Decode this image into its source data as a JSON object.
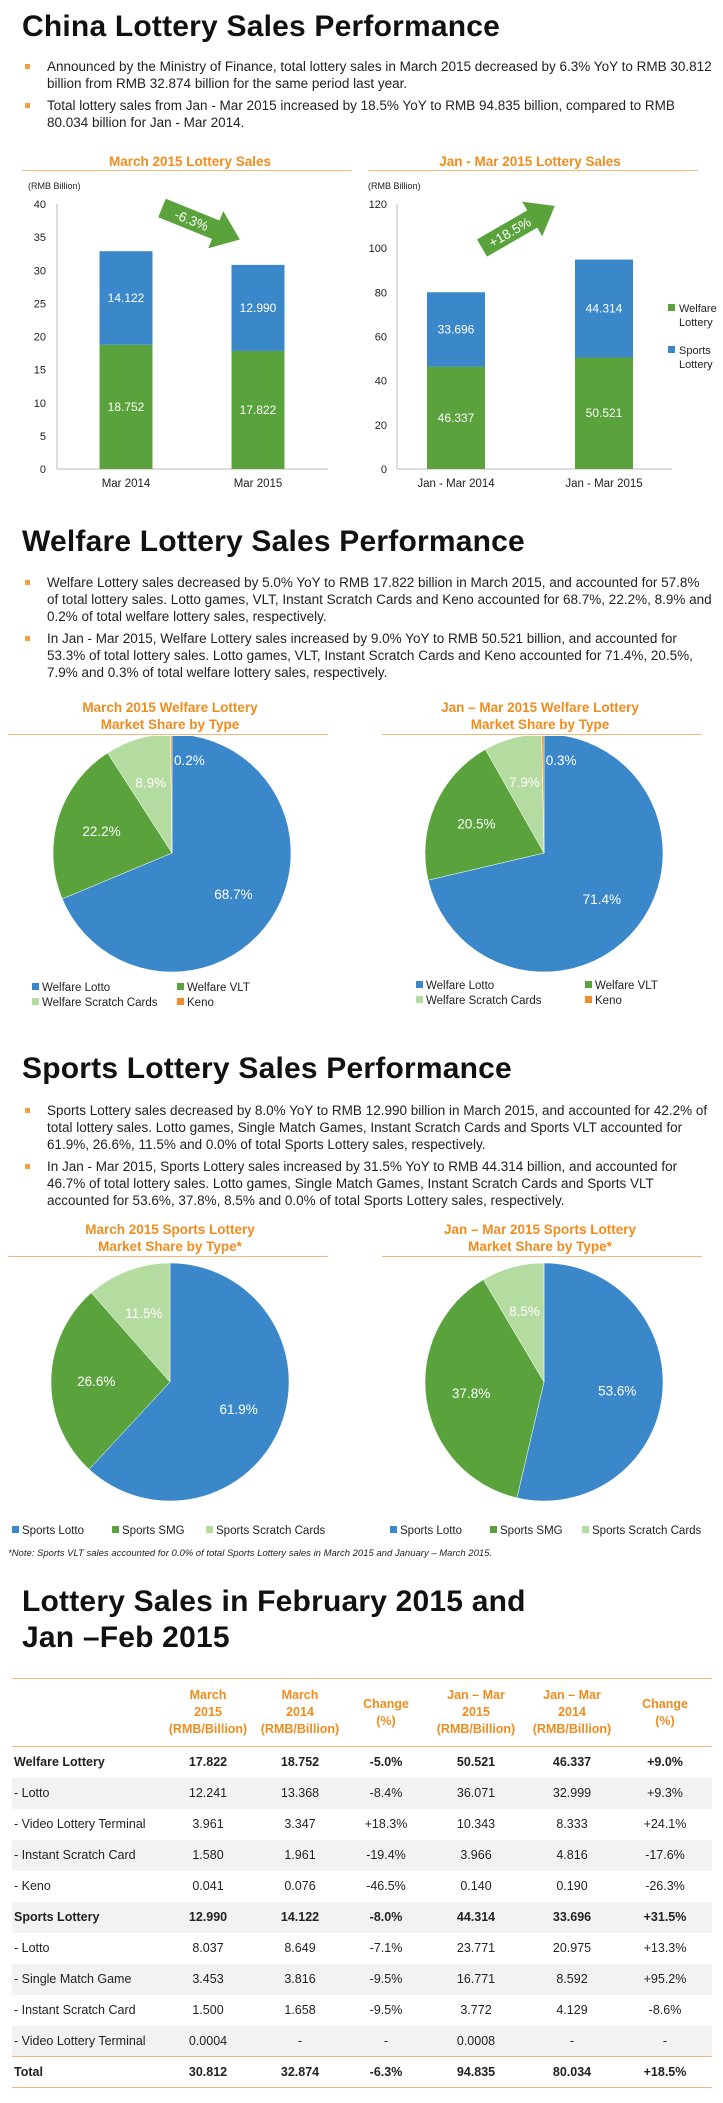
{
  "sections": {
    "s1": {
      "title": "China Lottery Sales Performance",
      "bullets": [
        "Announced by the Ministry of Finance, total lottery sales in March 2015 decreased by 6.3% YoY to RMB 30.812 billion from RMB 32.874 billion for the same period last year.",
        "Total lottery sales from Jan - Mar 2015 increased by 18.5% YoY to RMB 94.835 billion, compared to RMB 80.034 billion for Jan - Mar 2014."
      ]
    },
    "s2": {
      "title": "Welfare Lottery Sales Performance",
      "bullets": [
        "Welfare Lottery sales decreased by 5.0% YoY to RMB 17.822 billion in March 2015, and accounted for 57.8% of total lottery sales. Lotto games, VLT, Instant Scratch Cards and Keno accounted for 68.7%, 22.2%, 8.9% and 0.2% of total welfare lottery sales, respectively.",
        "In Jan - Mar 2015, Welfare Lottery sales increased by 9.0% YoY to RMB 50.521 billion, and accounted for 53.3% of total lottery sales. Lotto games, VLT, Instant Scratch Cards and Keno accounted for 71.4%, 20.5%, 7.9% and 0.3% of total welfare lottery sales, respectively."
      ]
    },
    "s3": {
      "title": "Sports Lottery Sales Performance",
      "bullets": [
        "Sports Lottery sales decreased by 8.0% YoY to RMB 12.990 billion in March 2015, and accounted for 42.2% of total lottery sales. Lotto games, Single Match Games, Instant Scratch Cards and Sports VLT accounted for 61.9%, 26.6%, 11.5% and 0.0% of total Sports Lottery sales, respectively.",
        "In Jan - Mar 2015, Sports Lottery sales increased by 31.5% YoY to RMB 44.314 billion, and accounted for 46.7% of total lottery sales. Lotto games, Single Match Games, Instant Scratch Cards and Sports VLT accounted for 53.6%, 37.8%, 8.5% and 0.0% of total Sports Lottery sales, respectively."
      ],
      "note": "*Note: Sports VLT sales accounted for 0.0% of total Sports Lottery sales in March 2015 and January – March 2015."
    },
    "s4": {
      "title_line1": "Lottery Sales in February 2015 and",
      "title_line2": "Jan –Feb 2015"
    }
  },
  "colors": {
    "welfare_green": "#5aa33c",
    "sports_blue": "#3a87c9",
    "scratch_lightgreen": "#b5dca0",
    "keno_orange": "#f28c28",
    "accent_orange": "#f08c1e"
  },
  "chart_data": [
    {
      "type": "bar",
      "title": "March 2015 Lottery Sales",
      "ylabel": "(RMB Billion)",
      "categories": [
        "Mar 2014",
        "Mar 2015"
      ],
      "series": [
        {
          "name": "Welfare Lottery",
          "values": [
            18.752,
            17.822
          ]
        },
        {
          "name": "Sports Lottery",
          "values": [
            14.122,
            12.99
          ]
        }
      ],
      "ylim": [
        0,
        40
      ],
      "yticks": [
        0,
        5,
        10,
        15,
        20,
        25,
        30,
        35,
        40
      ],
      "annotation": "-6.3%",
      "legend": "none"
    },
    {
      "type": "bar",
      "title": "Jan - Mar 2015 Lottery Sales",
      "ylabel": "(RMB Billion)",
      "categories": [
        "Jan - Mar 2014",
        "Jan - Mar 2015"
      ],
      "series": [
        {
          "name": "Welfare Lottery",
          "values": [
            46.337,
            50.521
          ]
        },
        {
          "name": "Sports Lottery",
          "values": [
            33.696,
            44.314
          ]
        }
      ],
      "ylim": [
        0,
        120
      ],
      "yticks": [
        0,
        20,
        40,
        60,
        80,
        100,
        120
      ],
      "annotation": "+18.5%",
      "legend": "right",
      "legend_entries": [
        [
          "Welfare",
          "Lottery"
        ],
        [
          "Sports",
          "Lottery"
        ]
      ]
    },
    {
      "type": "pie",
      "title_lines": [
        "March 2015 Welfare Lottery",
        "Market Share by Type"
      ],
      "slices": [
        {
          "label": "Welfare Lotto",
          "value": 68.7,
          "text": "68.7%"
        },
        {
          "label": "Welfare VLT",
          "value": 22.2,
          "text": "22.2%"
        },
        {
          "label": "Welfare Scratch Cards",
          "value": 8.9,
          "text": "8.9%"
        },
        {
          "label": "Keno",
          "value": 0.2,
          "text": "0.2%"
        }
      ]
    },
    {
      "type": "pie",
      "title_lines": [
        "Jan – Mar 2015 Welfare Lottery",
        "Market Share by Type"
      ],
      "slices": [
        {
          "label": "Welfare Lotto",
          "value": 71.4,
          "text": "71.4%"
        },
        {
          "label": "Welfare VLT",
          "value": 20.5,
          "text": "20.5%"
        },
        {
          "label": "Welfare Scratch Cards",
          "value": 7.9,
          "text": "7.9%"
        },
        {
          "label": "Keno",
          "value": 0.3,
          "text": "0.3%"
        }
      ]
    },
    {
      "type": "pie",
      "title_lines": [
        "March 2015 Sports Lottery",
        "Market Share by Type*"
      ],
      "slices": [
        {
          "label": "Sports Lotto",
          "value": 61.9,
          "text": "61.9%"
        },
        {
          "label": "Sports SMG",
          "value": 26.6,
          "text": "26.6%"
        },
        {
          "label": "Sports Scratch Cards",
          "value": 11.5,
          "text": "11.5%"
        }
      ]
    },
    {
      "type": "pie",
      "title_lines": [
        "Jan – Mar 2015 Sports Lottery",
        "Market Share by Type*"
      ],
      "slices": [
        {
          "label": "Sports Lotto",
          "value": 53.6,
          "text": "53.6%"
        },
        {
          "label": "Sports SMG",
          "value": 37.8,
          "text": "37.8%"
        },
        {
          "label": "Sports Scratch Cards",
          "value": 8.5,
          "text": "8.5%"
        }
      ]
    },
    {
      "type": "table",
      "headers": [
        "",
        [
          "March",
          "2015",
          "(RMB/Billion)"
        ],
        [
          "March",
          "2014",
          "(RMB/Billion)"
        ],
        [
          "Change",
          "(%)"
        ],
        [
          "Jan – Mar",
          "2015",
          "(RMB/Billion)"
        ],
        [
          "Jan – Mar",
          "2014",
          "(RMB/Billion)"
        ],
        [
          "Change",
          "(%)"
        ]
      ],
      "rows": [
        {
          "cells": [
            "Welfare Lottery",
            "17.822",
            "18.752",
            "-5.0%",
            "50.521",
            "46.337",
            "+9.0%"
          ],
          "bold": true
        },
        {
          "cells": [
            "- Lotto",
            "12.241",
            "13.368",
            "-8.4%",
            "36.071",
            "32.999",
            "+9.3%"
          ],
          "bold": false
        },
        {
          "cells": [
            "- Video Lottery Terminal",
            "3.961",
            "3.347",
            "+18.3%",
            "10.343",
            "8.333",
            "+24.1%"
          ],
          "bold": false
        },
        {
          "cells": [
            "- Instant Scratch Card",
            "1.580",
            "1.961",
            "-19.4%",
            "3.966",
            "4.816",
            "-17.6%"
          ],
          "bold": false
        },
        {
          "cells": [
            "- Keno",
            "0.041",
            "0.076",
            "-46.5%",
            "0.140",
            "0.190",
            "-26.3%"
          ],
          "bold": false
        },
        {
          "cells": [
            "Sports Lottery",
            "12.990",
            "14.122",
            "-8.0%",
            "44.314",
            "33.696",
            "+31.5%"
          ],
          "bold": true
        },
        {
          "cells": [
            "- Lotto",
            "8.037",
            "8.649",
            "-7.1%",
            "23.771",
            "20.975",
            "+13.3%"
          ],
          "bold": false
        },
        {
          "cells": [
            "- Single Match Game",
            "3.453",
            "3.816",
            "-9.5%",
            "16.771",
            "8.592",
            "+95.2%"
          ],
          "bold": false
        },
        {
          "cells": [
            "- Instant Scratch Card",
            "1.500",
            "1.658",
            "-9.5%",
            "3.772",
            "4.129",
            "-8.6%"
          ],
          "bold": false
        },
        {
          "cells": [
            "- Video Lottery Terminal",
            "0.0004",
            "-",
            "-",
            "0.0008",
            "-",
            "-"
          ],
          "bold": false
        },
        {
          "cells": [
            "Total",
            "30.812",
            "32.874",
            "-6.3%",
            "94.835",
            "80.034",
            "+18.5%"
          ],
          "bold": true
        }
      ]
    }
  ]
}
